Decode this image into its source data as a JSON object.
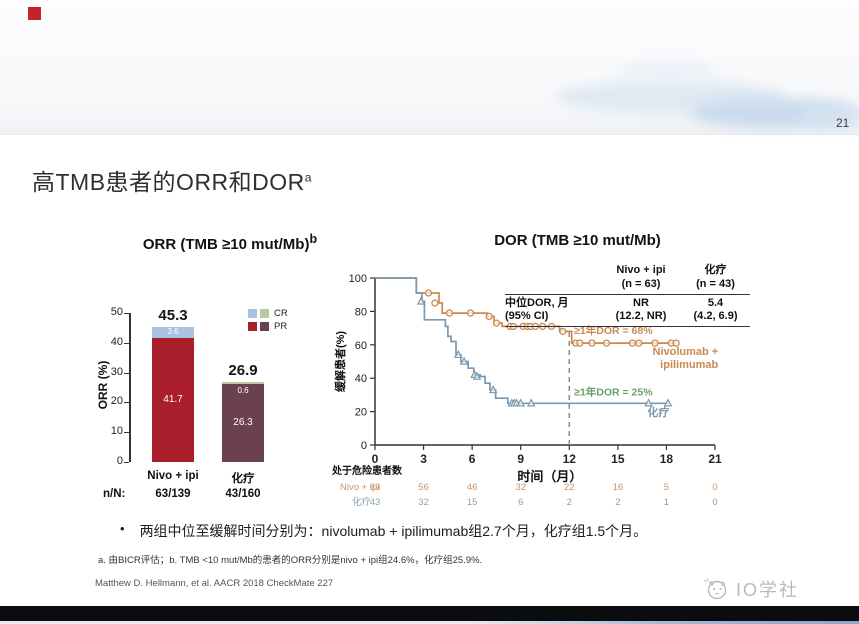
{
  "page": {
    "number": "21",
    "title": "高TMB患者的ORR和DOR",
    "title_sup": "a"
  },
  "bullet": "两组中位至缓解时间分别为：nivolumab + ipilimumab组2.7个月，化疗组1.5个月。",
  "footnote": "a. 由BICR评估；b. TMB <10 mut/Mb的患者的ORR分别是nivo + ipi组24.6%，化疗组25.9%.",
  "citation": "Matthew D. Hellmann, et al. AACR 2018 CheckMate 227",
  "watermark": "IO学社",
  "chart_data": [
    {
      "id": "orr_bar",
      "type": "bar",
      "title": "ORR (TMB ≥10 mut/Mb)",
      "title_sup": "b",
      "ylabel": "ORR (%)",
      "ylim": [
        0,
        50
      ],
      "yticks": [
        0,
        10,
        20,
        30,
        40,
        50
      ],
      "categories": [
        "Nivo + ipi",
        "化疗"
      ],
      "n_label": "n/N:",
      "n_values": [
        "63/139",
        "43/160"
      ],
      "totals": [
        45.3,
        26.9
      ],
      "series": [
        {
          "name": "PR",
          "values": [
            41.7,
            26.3
          ],
          "colors": [
            "#ab1f2d",
            "#6b4050"
          ]
        },
        {
          "name": "CR",
          "values": [
            3.6,
            0.6
          ],
          "colors": [
            "#a8c2e0",
            "#b7c9a3"
          ]
        }
      ],
      "legend": [
        {
          "label": "CR",
          "colors": [
            "#a8c2e0",
            "#b7c9a3"
          ]
        },
        {
          "label": "PR",
          "colors": [
            "#ab1f2d",
            "#6b4050"
          ]
        }
      ]
    },
    {
      "id": "dor_km",
      "type": "line",
      "title": "DOR (TMB ≥10 mut/Mb)",
      "ylabel": "缓解患者(%)",
      "xlabel": "时间（月）",
      "ylim": [
        0,
        100
      ],
      "xlim": [
        0,
        21
      ],
      "yticks": [
        0,
        20,
        40,
        60,
        80,
        100
      ],
      "xticks": [
        0,
        3,
        6,
        9,
        12,
        15,
        18,
        21
      ],
      "reference_line_x": 12,
      "series": [
        {
          "name": "Nivo + ipi",
          "label_lines": [
            "Nivolumab +",
            "ipilimumab"
          ],
          "color": "#c98a52",
          "annotation": "≥1年DOR = 68%",
          "annotation_color": "#c98a52",
          "steps": [
            [
              0,
              100
            ],
            [
              2.55,
              100
            ],
            [
              2.55,
              91
            ],
            [
              3.95,
              91
            ],
            [
              3.95,
              85
            ],
            [
              4.15,
              85
            ],
            [
              4.15,
              79
            ],
            [
              6.95,
              79
            ],
            [
              6.95,
              77
            ],
            [
              7.35,
              77
            ],
            [
              7.35,
              73
            ],
            [
              7.85,
              73
            ],
            [
              7.85,
              71
            ],
            [
              11.4,
              71
            ],
            [
              11.4,
              68
            ],
            [
              12.15,
              68
            ],
            [
              12.15,
              61
            ],
            [
              18.6,
              61
            ]
          ],
          "censors": [
            [
              3.3,
              91
            ],
            [
              3.7,
              85
            ],
            [
              4.6,
              79
            ],
            [
              5.9,
              79
            ],
            [
              7.05,
              77
            ],
            [
              7.5,
              73
            ],
            [
              8.35,
              71
            ],
            [
              8.55,
              71
            ],
            [
              9.15,
              71
            ],
            [
              9.4,
              71
            ],
            [
              9.6,
              71
            ],
            [
              9.9,
              71
            ],
            [
              10.35,
              71
            ],
            [
              10.9,
              71
            ],
            [
              11.6,
              68
            ],
            [
              12.4,
              61
            ],
            [
              12.65,
              61
            ],
            [
              13.4,
              61
            ],
            [
              14.3,
              61
            ],
            [
              15.9,
              61
            ],
            [
              16.3,
              61
            ],
            [
              17.3,
              61
            ],
            [
              18.3,
              61
            ],
            [
              18.6,
              61
            ]
          ]
        },
        {
          "name": "化疗",
          "label_lines": [
            "化疗"
          ],
          "color": "#7b99ad",
          "annotation": "≥1年DOR = 25%",
          "annotation_color": "#67a06b",
          "steps": [
            [
              0,
              100
            ],
            [
              2.55,
              100
            ],
            [
              2.55,
              91
            ],
            [
              2.9,
              91
            ],
            [
              2.9,
              86
            ],
            [
              3.05,
              86
            ],
            [
              3.05,
              75
            ],
            [
              4.35,
              75
            ],
            [
              4.35,
              71
            ],
            [
              4.5,
              71
            ],
            [
              4.5,
              65
            ],
            [
              4.7,
              65
            ],
            [
              4.7,
              62
            ],
            [
              5.0,
              62
            ],
            [
              5.0,
              54
            ],
            [
              5.3,
              54
            ],
            [
              5.3,
              50
            ],
            [
              5.75,
              50
            ],
            [
              5.75,
              46
            ],
            [
              6.1,
              46
            ],
            [
              6.1,
              42
            ],
            [
              6.5,
              42
            ],
            [
              6.5,
              41
            ],
            [
              6.8,
              41
            ],
            [
              6.8,
              37
            ],
            [
              7.1,
              37
            ],
            [
              7.1,
              33
            ],
            [
              7.45,
              33
            ],
            [
              7.45,
              28
            ],
            [
              8.2,
              28
            ],
            [
              8.2,
              25
            ],
            [
              18.15,
              25
            ]
          ],
          "censors": [
            [
              2.85,
              86
            ],
            [
              5.15,
              54
            ],
            [
              5.5,
              50
            ],
            [
              6.15,
              42
            ],
            [
              6.3,
              41
            ],
            [
              7.3,
              33
            ],
            [
              8.45,
              25
            ],
            [
              8.6,
              25
            ],
            [
              8.75,
              25
            ],
            [
              9.0,
              25
            ],
            [
              9.65,
              25
            ],
            [
              16.9,
              25
            ],
            [
              18.1,
              25
            ]
          ]
        }
      ],
      "table": {
        "col_headers": [
          [
            "Nivo + ipi",
            "(n = 63)"
          ],
          [
            "化疗",
            "(n = 43)"
          ]
        ],
        "row_header": [
          "中位DOR, 月",
          "(95% CI)"
        ],
        "values": [
          [
            "NR",
            "(12.2, NR)"
          ],
          [
            "5.4",
            "(4.2, 6.9)"
          ]
        ]
      },
      "at_risk": {
        "title": "处于危险患者数",
        "rows": [
          {
            "label": "Nivo + ipi",
            "color": "#cb9468",
            "values": [
              63,
              56,
              46,
              32,
              22,
              16,
              5,
              0
            ]
          },
          {
            "label": "化疗",
            "color": "#8ba2b2",
            "values": [
              43,
              32,
              15,
              6,
              2,
              2,
              1,
              0
            ]
          }
        ]
      }
    }
  ]
}
